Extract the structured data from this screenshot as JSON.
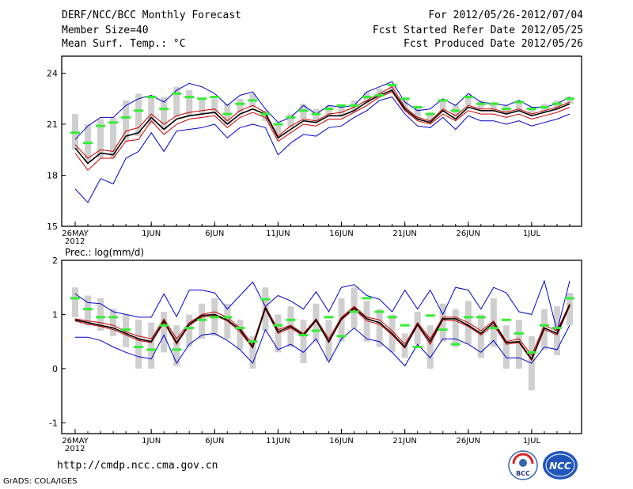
{
  "header": {
    "title": "DERF/NCC/BCC Monthly Forecast",
    "member_size": "Member Size=40",
    "variable1": "Mean Surf. Temp.: °C",
    "period": "For 2012/05/26-2012/07/04",
    "fcst_started": "Fcst Started Refer Date 2012/05/25",
    "fcst_produced": "Fcst Produced Date 2012/05/26"
  },
  "footer": {
    "url": "http://cmdp.ncc.cma.gov.cn",
    "grads_credit": "GrADS: COLA/IGES",
    "logo_left_text": "BCC",
    "logo_right_text": "NCC"
  },
  "colors": {
    "envelope": "#0000cc",
    "spread": "#cc0000",
    "mean": "#000000",
    "bar": "#cfcfcf",
    "climate_marker": "#33ee33"
  },
  "chart_data": [
    {
      "type": "line",
      "title": "Mean Surf. Temp.: °C",
      "ylim": [
        15,
        25
      ],
      "yticks": [
        15,
        18,
        21,
        24
      ],
      "x_labels": [
        "26MAY",
        "1JUN",
        "6JUN",
        "11JUN",
        "16JUN",
        "21JUN",
        "26JUN",
        "1JUL"
      ],
      "x_label_index": [
        0,
        6,
        11,
        16,
        21,
        26,
        31,
        36
      ],
      "year_label": "2012",
      "n_days": 40,
      "series": [
        {
          "name": "max",
          "values": [
            17.2,
            16.4,
            17.8,
            17.5,
            19.0,
            19.4,
            20.5,
            19.4,
            20.6,
            20.7,
            20.8,
            21.0,
            20.2,
            20.8,
            21.0,
            20.8,
            19.2,
            19.9,
            20.4,
            20.3,
            20.8,
            20.9,
            21.4,
            21.8,
            22.4,
            22.6,
            21.6,
            20.9,
            20.8,
            21.4,
            20.7,
            21.5,
            21.2,
            21.2,
            21.0,
            21.2,
            20.9,
            21.1,
            21.3,
            21.6
          ]
        },
        {
          "name": "p_high",
          "values": [
            19.3,
            18.3,
            19.0,
            19.0,
            20.0,
            20.1,
            21.2,
            20.4,
            21.0,
            21.3,
            21.4,
            21.5,
            20.8,
            21.4,
            21.7,
            21.4,
            20.0,
            20.5,
            21.0,
            20.9,
            21.3,
            21.3,
            21.7,
            22.1,
            22.6,
            22.9,
            21.8,
            21.2,
            21.0,
            21.6,
            21.2,
            21.8,
            21.6,
            21.6,
            21.4,
            21.6,
            21.3,
            21.5,
            21.7,
            22.0
          ]
        },
        {
          "name": "p_low",
          "values": [
            19.8,
            19.0,
            19.5,
            19.4,
            20.6,
            20.8,
            21.6,
            21.0,
            21.5,
            21.7,
            21.8,
            21.9,
            21.2,
            21.8,
            22.1,
            21.7,
            20.3,
            20.9,
            21.3,
            21.2,
            21.6,
            21.7,
            22.0,
            22.4,
            22.8,
            23.2,
            22.0,
            21.4,
            21.2,
            21.9,
            21.5,
            22.1,
            21.9,
            21.9,
            21.7,
            21.9,
            21.6,
            21.8,
            22.0,
            22.3
          ]
        },
        {
          "name": "mean",
          "values": [
            19.6,
            18.7,
            19.3,
            19.2,
            20.3,
            20.5,
            21.4,
            20.7,
            21.3,
            21.5,
            21.6,
            21.7,
            21.0,
            21.6,
            21.9,
            21.6,
            20.2,
            20.7,
            21.2,
            21.1,
            21.5,
            21.5,
            21.8,
            22.3,
            22.7,
            23.0,
            21.9,
            21.3,
            21.1,
            21.8,
            21.3,
            22.0,
            21.8,
            21.8,
            21.6,
            21.8,
            21.5,
            21.7,
            21.9,
            22.2
          ]
        },
        {
          "name": "min",
          "values": [
            20.1,
            20.9,
            21.4,
            21.4,
            22.1,
            22.5,
            22.7,
            22.3,
            23.0,
            23.4,
            23.2,
            22.8,
            22.1,
            22.7,
            22.9,
            21.9,
            21.1,
            21.4,
            22.1,
            21.6,
            22.1,
            22.0,
            22.1,
            22.9,
            23.2,
            23.5,
            22.3,
            21.8,
            21.9,
            22.5,
            22.1,
            22.8,
            22.3,
            22.2,
            22.1,
            22.4,
            22.0,
            22.0,
            22.2,
            22.6
          ]
        }
      ],
      "bars": [
        [
          19.5,
          21.6
        ],
        [
          18.8,
          21.0
        ],
        [
          19.0,
          21.3
        ],
        [
          19.0,
          21.4
        ],
        [
          20.0,
          22.4
        ],
        [
          20.3,
          22.8
        ],
        [
          21.0,
          22.6
        ],
        [
          20.7,
          22.6
        ],
        [
          21.4,
          23.2
        ],
        [
          21.5,
          23.0
        ],
        [
          21.6,
          22.5
        ],
        [
          21.6,
          22.5
        ],
        [
          21.0,
          22.2
        ],
        [
          21.7,
          22.5
        ],
        [
          22.0,
          22.8
        ],
        [
          21.2,
          21.8
        ],
        [
          20.4,
          21.0
        ],
        [
          20.8,
          21.6
        ],
        [
          21.3,
          22.2
        ],
        [
          21.1,
          21.9
        ],
        [
          21.5,
          22.1
        ],
        [
          21.5,
          22.1
        ],
        [
          21.8,
          22.4
        ],
        [
          22.2,
          22.9
        ],
        [
          22.6,
          23.1
        ],
        [
          23.0,
          23.3
        ],
        [
          21.9,
          22.5
        ],
        [
          21.3,
          22.0
        ],
        [
          21.1,
          21.7
        ],
        [
          21.7,
          22.4
        ],
        [
          21.4,
          22.2
        ],
        [
          22.1,
          22.7
        ],
        [
          21.9,
          22.4
        ],
        [
          21.8,
          22.3
        ],
        [
          21.6,
          22.1
        ],
        [
          21.8,
          22.4
        ],
        [
          21.6,
          22.0
        ],
        [
          21.7,
          22.2
        ],
        [
          21.9,
          22.4
        ],
        [
          22.2,
          22.6
        ]
      ],
      "climate": [
        20.5,
        19.9,
        20.9,
        21.1,
        21.4,
        21.8,
        22.6,
        21.9,
        22.8,
        22.6,
        22.5,
        22.6,
        21.6,
        22.2,
        22.4,
        21.6,
        21.0,
        21.4,
        21.8,
        21.6,
        21.9,
        22.1,
        22.1,
        22.6,
        22.7,
        23.3,
        22.5,
        22.0,
        21.6,
        22.4,
        21.8,
        22.6,
        22.2,
        22.2,
        21.9,
        22.3,
        21.9,
        22.0,
        22.2,
        22.5
      ]
    },
    {
      "type": "line",
      "title": "Prec.: log(mm/d)",
      "ylim": [
        -1.2,
        2
      ],
      "yticks": [
        -1,
        0,
        1,
        2
      ],
      "x_labels": [
        "26MAY",
        "1JUN",
        "6JUN",
        "11JUN",
        "16JUN",
        "21JUN",
        "26JUN",
        "1JUL"
      ],
      "x_label_index": [
        0,
        6,
        11,
        16,
        21,
        26,
        31,
        36
      ],
      "year_label": "2012",
      "n_days": 40,
      "series": [
        {
          "name": "max",
          "values": [
            1.38,
            1.22,
            1.2,
            1.05,
            1.0,
            0.95,
            0.95,
            1.38,
            0.96,
            1.45,
            1.45,
            1.4,
            1.1,
            1.35,
            1.6,
            1.15,
            1.35,
            1.25,
            1.1,
            1.42,
            1.05,
            1.5,
            1.55,
            1.35,
            1.28,
            1.05,
            1.45,
            1.1,
            1.45,
            1.0,
            1.5,
            1.45,
            1.1,
            1.5,
            1.4,
            1.05,
            1.0,
            1.62,
            0.7,
            1.62
          ]
        },
        {
          "name": "p_high",
          "values": [
            0.92,
            0.88,
            0.85,
            0.8,
            0.68,
            0.6,
            0.55,
            0.92,
            0.55,
            0.85,
            1.0,
            1.05,
            0.95,
            0.75,
            0.45,
            1.15,
            0.72,
            0.8,
            0.65,
            0.92,
            0.55,
            0.95,
            1.15,
            0.95,
            0.9,
            0.7,
            0.45,
            0.85,
            0.55,
            0.95,
            0.95,
            0.85,
            0.7,
            0.88,
            0.5,
            0.55,
            0.25,
            0.8,
            0.7,
            1.2
          ]
        },
        {
          "name": "p_low",
          "values": [
            0.88,
            0.82,
            0.78,
            0.72,
            0.62,
            0.52,
            0.48,
            0.85,
            0.45,
            0.8,
            0.95,
            0.98,
            0.88,
            0.68,
            0.38,
            1.1,
            0.65,
            0.75,
            0.6,
            0.88,
            0.48,
            0.9,
            1.1,
            0.88,
            0.82,
            0.62,
            0.38,
            0.8,
            0.45,
            0.9,
            0.88,
            0.78,
            0.62,
            0.8,
            0.45,
            0.48,
            0.15,
            0.72,
            0.62,
            1.15
          ]
        },
        {
          "name": "mean",
          "values": [
            0.9,
            0.85,
            0.8,
            0.75,
            0.65,
            0.55,
            0.5,
            0.88,
            0.48,
            0.82,
            0.98,
            1.0,
            0.9,
            0.72,
            0.4,
            1.12,
            0.68,
            0.78,
            0.62,
            0.9,
            0.5,
            0.92,
            1.12,
            0.92,
            0.85,
            0.65,
            0.4,
            0.82,
            0.5,
            0.92,
            0.92,
            0.8,
            0.65,
            0.85,
            0.48,
            0.5,
            0.18,
            0.75,
            0.65,
            1.18
          ]
        },
        {
          "name": "min",
          "values": [
            0.58,
            0.58,
            0.52,
            0.4,
            0.3,
            0.22,
            0.18,
            0.62,
            0.1,
            0.45,
            0.62,
            0.65,
            0.52,
            0.35,
            0.1,
            0.72,
            0.35,
            0.45,
            0.3,
            0.55,
            0.12,
            0.55,
            0.75,
            0.55,
            0.5,
            0.3,
            0.05,
            0.45,
            0.2,
            0.55,
            0.55,
            0.45,
            0.3,
            0.52,
            0.2,
            0.2,
            0.1,
            0.4,
            0.35,
            0.8
          ]
        }
      ],
      "bars": [
        [
          0.95,
          1.5
        ],
        [
          0.8,
          1.35
        ],
        [
          0.7,
          1.3
        ],
        [
          0.6,
          1.1
        ],
        [
          0.4,
          1.0
        ],
        [
          0.0,
          0.9
        ],
        [
          0.0,
          0.85
        ],
        [
          0.3,
          1.05
        ],
        [
          0.05,
          0.8
        ],
        [
          0.4,
          1.0
        ],
        [
          0.55,
          1.2
        ],
        [
          0.6,
          1.3
        ],
        [
          0.55,
          1.2
        ],
        [
          0.35,
          0.9
        ],
        [
          0.0,
          0.6
        ],
        [
          0.7,
          1.5
        ],
        [
          0.3,
          1.0
        ],
        [
          0.4,
          1.15
        ],
        [
          0.1,
          0.9
        ],
        [
          0.5,
          1.2
        ],
        [
          0.15,
          0.9
        ],
        [
          0.5,
          1.3
        ],
        [
          0.75,
          1.5
        ],
        [
          0.5,
          1.25
        ],
        [
          0.4,
          1.1
        ],
        [
          0.3,
          1.0
        ],
        [
          0.2,
          0.65
        ],
        [
          0.45,
          1.05
        ],
        [
          0.0,
          0.8
        ],
        [
          0.5,
          1.2
        ],
        [
          0.4,
          1.1
        ],
        [
          0.45,
          1.25
        ],
        [
          0.2,
          1.0
        ],
        [
          0.4,
          1.3
        ],
        [
          0.0,
          0.8
        ],
        [
          0.0,
          0.9
        ],
        [
          -0.4,
          0.6
        ],
        [
          0.35,
          1.1
        ],
        [
          0.25,
          1.15
        ],
        [
          0.8,
          1.4
        ]
      ],
      "climate": [
        1.3,
        1.1,
        0.95,
        0.95,
        0.72,
        0.4,
        0.35,
        0.8,
        0.35,
        0.75,
        0.9,
        0.95,
        0.95,
        0.75,
        0.5,
        1.28,
        0.8,
        0.9,
        0.62,
        0.7,
        0.95,
        0.6,
        1.05,
        1.3,
        1.05,
        0.95,
        0.8,
        0.4,
        0.98,
        0.72,
        0.45,
        0.95,
        0.95,
        0.75,
        0.9,
        0.65,
        0.3,
        0.8,
        0.75,
        1.3
      ]
    }
  ]
}
